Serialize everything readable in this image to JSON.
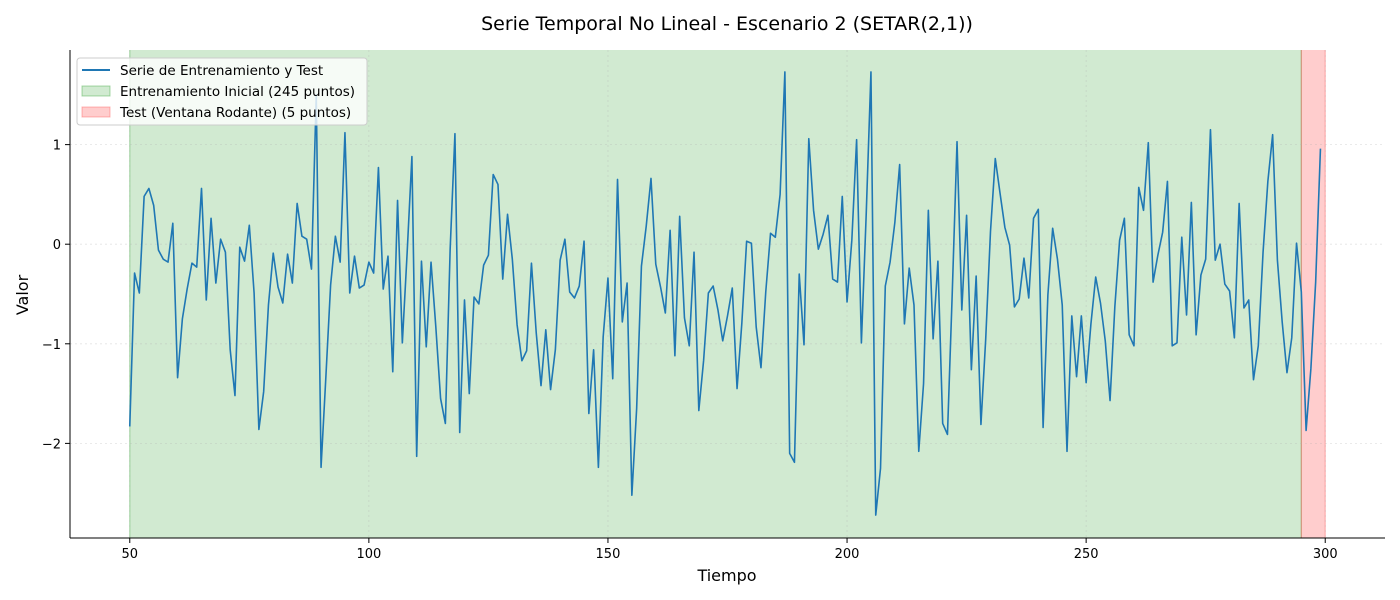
{
  "chart_data": {
    "type": "line",
    "title": "Serie Temporal No Lineal - Escenario 2 (SETAR(2,1))",
    "xlabel": "Tiempo",
    "ylabel": "Valor",
    "xlim": [
      37.5,
      312.5
    ],
    "ylim": [
      -2.95,
      1.95
    ],
    "xticks": [
      50,
      100,
      150,
      200,
      250,
      300
    ],
    "yticks": [
      -2,
      -1,
      0,
      1
    ],
    "ytick_labels": [
      "−2",
      "−1",
      "0",
      "1"
    ],
    "grid": true,
    "legend_position": "top-left",
    "colors": {
      "line": "#1f77b4",
      "train_span": "#2ca02c",
      "test_span": "#ff4d4d"
    },
    "regions": [
      {
        "name": "Entrenamiento Inicial (245 puntos)",
        "x_start": 50,
        "x_end": 295,
        "color": "#2ca02c",
        "alpha": 0.22
      },
      {
        "name": "Test (Ventana Rodante) (5 puntos)",
        "x_start": 295,
        "x_end": 300,
        "color": "#ff4d4d",
        "alpha": 0.28
      }
    ],
    "series": [
      {
        "name": "Serie de Entrenamiento y Test",
        "x_start": 50,
        "x_step": 1,
        "values": [
          -1.83,
          -0.29,
          -0.49,
          0.48,
          0.56,
          0.39,
          -0.06,
          -0.15,
          -0.18,
          0.21,
          -1.34,
          -0.75,
          -0.45,
          -0.19,
          -0.23,
          0.56,
          -0.56,
          0.26,
          -0.39,
          0.05,
          -0.08,
          -1.06,
          -1.52,
          -0.03,
          -0.17,
          0.19,
          -0.49,
          -1.86,
          -1.48,
          -0.61,
          -0.09,
          -0.43,
          -0.59,
          -0.1,
          -0.39,
          0.41,
          0.08,
          0.05,
          -0.25,
          1.5,
          -2.24,
          -1.34,
          -0.41,
          0.08,
          -0.18,
          1.12,
          -0.49,
          -0.12,
          -0.44,
          -0.41,
          -0.18,
          -0.29,
          0.77,
          -0.45,
          -0.12,
          -1.28,
          0.44,
          -0.99,
          -0.09,
          0.88,
          -2.13,
          -0.17,
          -1.03,
          -0.18,
          -0.83,
          -1.55,
          -1.8,
          -0.05,
          1.11,
          -1.89,
          -0.56,
          -1.5,
          -0.53,
          -0.6,
          -0.21,
          -0.11,
          0.7,
          0.6,
          -0.35,
          0.3,
          -0.15,
          -0.81,
          -1.17,
          -1.07,
          -0.19,
          -0.89,
          -1.42,
          -0.86,
          -1.46,
          -1.06,
          -0.16,
          0.05,
          -0.48,
          -0.54,
          -0.42,
          0.03,
          -1.7,
          -1.06,
          -2.24,
          -0.93,
          -0.34,
          -1.35,
          0.65,
          -0.78,
          -0.39,
          -2.52,
          -1.65,
          -0.22,
          0.18,
          0.66,
          -0.2,
          -0.43,
          -0.69,
          0.14,
          -1.12,
          0.28,
          -0.74,
          -1.02,
          -0.08,
          -1.67,
          -1.17,
          -0.49,
          -0.42,
          -0.66,
          -0.97,
          -0.72,
          -0.44,
          -1.45,
          -0.79,
          0.03,
          0.01,
          -0.83,
          -1.24,
          -0.48,
          0.11,
          0.07,
          0.5,
          1.73,
          -2.1,
          -2.19,
          -0.3,
          -1.01,
          1.06,
          0.34,
          -0.05,
          0.1,
          0.29,
          -0.35,
          -0.38,
          0.48,
          -0.58,
          0.04,
          1.05,
          -0.99,
          0.29,
          1.73,
          -2.72,
          -2.25,
          -0.42,
          -0.18,
          0.22,
          0.8,
          -0.8,
          -0.24,
          -0.61,
          -2.08,
          -1.4,
          0.34,
          -0.95,
          -0.17,
          -1.8,
          -1.91,
          -0.49,
          1.03,
          -0.66,
          0.29,
          -1.26,
          -0.32,
          -1.81,
          -0.95,
          0.13,
          0.86,
          0.51,
          0.17,
          -0.01,
          -0.63,
          -0.55,
          -0.14,
          -0.54,
          0.26,
          0.35,
          -1.84,
          -0.51,
          0.16,
          -0.15,
          -0.61,
          -2.08,
          -0.72,
          -1.33,
          -0.72,
          -1.39,
          -0.8,
          -0.33,
          -0.59,
          -0.97,
          -1.57,
          -0.63,
          0.04,
          0.26,
          -0.91,
          -1.02,
          0.57,
          0.34,
          1.02,
          -0.38,
          -0.11,
          0.12,
          0.63,
          -1.02,
          -0.99,
          0.07,
          -0.71,
          0.42,
          -0.91,
          -0.31,
          -0.15,
          1.15,
          -0.16,
          0.0,
          -0.4,
          -0.47,
          -0.94,
          0.41,
          -0.64,
          -0.56,
          -1.36,
          -1.02,
          -0.08,
          0.63,
          1.1,
          -0.16,
          -0.78,
          -1.29,
          -0.94,
          0.01,
          -0.48,
          -1.87,
          -1.25,
          -0.38,
          0.96
        ]
      }
    ],
    "legend": [
      {
        "label": "Serie de Entrenamiento y Test",
        "kind": "line"
      },
      {
        "label": "Entrenamiento Inicial (245 puntos)",
        "kind": "patch-train"
      },
      {
        "label": "Test (Ventana Rodante) (5 puntos)",
        "kind": "patch-test"
      }
    ]
  }
}
